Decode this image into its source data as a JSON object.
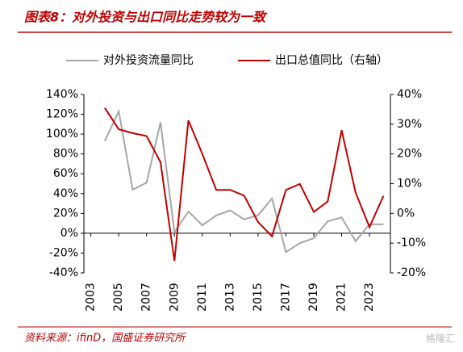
{
  "chart_data": {
    "type": "line",
    "title": "图表8：对外投资与出口同比走势较为一致",
    "source": "资料来源：ifinD，国盛证券研究所",
    "watermark": "格隆汇",
    "x": [
      2004,
      2005,
      2006,
      2007,
      2008,
      2009,
      2010,
      2011,
      2012,
      2013,
      2014,
      2015,
      2016,
      2017,
      2018,
      2019,
      2020,
      2021,
      2022,
      2023,
      2024
    ],
    "series": [
      {
        "name": "对外投资流量同比",
        "color": "#a6a6a6",
        "axis": "y",
        "values": [
          93,
          123,
          44,
          51,
          112,
          1,
          22,
          8,
          18,
          23,
          14,
          18,
          35,
          -19,
          -10,
          -5,
          12,
          16,
          -8,
          9,
          9
        ]
      },
      {
        "name": "出口总值同比（右轴）",
        "color": "#c00000",
        "axis": "y2",
        "values": [
          35.5,
          28.3,
          27,
          26,
          17.2,
          -16,
          31.3,
          20,
          7.9,
          7.9,
          6,
          -2.9,
          -7.7,
          7.9,
          9.9,
          0.5,
          4,
          28,
          7,
          -4.6,
          5.9
        ]
      }
    ],
    "xlim": [
      2002.5,
      2024.5
    ],
    "xticks": [
      2003,
      2005,
      2007,
      2009,
      2011,
      2013,
      2015,
      2017,
      2019,
      2021,
      2023
    ],
    "ylim": [
      -40,
      140
    ],
    "yticks": [
      {
        "value": -40,
        "label": "-40%"
      },
      {
        "value": -20,
        "label": "-20%"
      },
      {
        "value": 0,
        "label": "0%"
      },
      {
        "value": 20,
        "label": "20%"
      },
      {
        "value": 40,
        "label": "40%"
      },
      {
        "value": 60,
        "label": "60%"
      },
      {
        "value": 80,
        "label": "80%"
      },
      {
        "value": 100,
        "label": "100%"
      },
      {
        "value": 120,
        "label": "120%"
      },
      {
        "value": 140,
        "label": "140%"
      }
    ],
    "y2lim": [
      -20,
      40
    ],
    "y2ticks": [
      {
        "value": -20,
        "label": "-20%"
      },
      {
        "value": -10,
        "label": "-10%"
      },
      {
        "value": 0,
        "label": "0%"
      },
      {
        "value": 10,
        "label": "10%"
      },
      {
        "value": 20,
        "label": "20%"
      },
      {
        "value": 30,
        "label": "30%"
      },
      {
        "value": 40,
        "label": "40%"
      }
    ]
  }
}
